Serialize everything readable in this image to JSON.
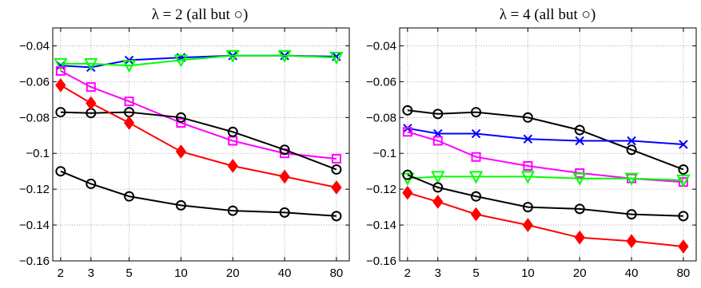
{
  "chart_data": [
    {
      "type": "line",
      "title": "λ = 2  (all but ○)",
      "x_scale": "log",
      "categories": [
        "2",
        "3",
        "5",
        "10",
        "20",
        "40",
        "80"
      ],
      "x": [
        2,
        3,
        5,
        10,
        20,
        40,
        80
      ],
      "xlim": [
        1.8,
        95
      ],
      "ylim": [
        -0.16,
        -0.03
      ],
      "yticks": [
        -0.04,
        -0.06,
        -0.08,
        -0.1,
        -0.12,
        -0.14,
        -0.16
      ],
      "ytick_labels": [
        "−0.04",
        "−0.06",
        "−0.08",
        "−0.1",
        "−0.12",
        "−0.14",
        "−0.16"
      ],
      "grid": true,
      "series": [
        {
          "color": "#0000ff",
          "marker": "x",
          "values": [
            -0.051,
            -0.052,
            -0.048,
            -0.0465,
            -0.0455,
            -0.0455,
            -0.046
          ]
        },
        {
          "color": "#00ff00",
          "marker": "triangle-down",
          "values": [
            -0.05,
            -0.05,
            -0.051,
            -0.048,
            -0.0455,
            -0.0455,
            -0.0465
          ]
        },
        {
          "color": "#ff00ff",
          "marker": "square",
          "values": [
            -0.054,
            -0.063,
            -0.071,
            -0.083,
            -0.093,
            -0.1,
            -0.103
          ]
        },
        {
          "color": "#000000",
          "marker": "circle",
          "values": [
            -0.077,
            -0.0775,
            -0.077,
            -0.08,
            -0.088,
            -0.098,
            -0.109
          ]
        },
        {
          "color": "#ff0000",
          "marker": "diamond",
          "values": [
            -0.062,
            -0.072,
            -0.083,
            -0.099,
            -0.107,
            -0.113,
            -0.119
          ]
        },
        {
          "color": "#000000",
          "marker": "circle",
          "values": [
            -0.11,
            -0.117,
            -0.124,
            -0.129,
            -0.132,
            -0.133,
            -0.135
          ]
        }
      ]
    },
    {
      "type": "line",
      "title": "λ = 4  (all but ○)",
      "x_scale": "log",
      "categories": [
        "2",
        "3",
        "5",
        "10",
        "20",
        "40",
        "80"
      ],
      "x": [
        2,
        3,
        5,
        10,
        20,
        40,
        80
      ],
      "xlim": [
        1.8,
        95
      ],
      "ylim": [
        -0.16,
        -0.03
      ],
      "yticks": [
        -0.04,
        -0.06,
        -0.08,
        -0.1,
        -0.12,
        -0.14,
        -0.16
      ],
      "ytick_labels": [
        "−0.04",
        "−0.06",
        "−0.08",
        "−0.1",
        "−0.12",
        "−0.14",
        "−0.16"
      ],
      "grid": true,
      "series": [
        {
          "color": "#000000",
          "marker": "circle",
          "values": [
            -0.076,
            -0.078,
            -0.077,
            -0.08,
            -0.087,
            -0.098,
            -0.109
          ]
        },
        {
          "color": "#0000ff",
          "marker": "x",
          "values": [
            -0.086,
            -0.089,
            -0.089,
            -0.092,
            -0.093,
            -0.093,
            -0.095
          ]
        },
        {
          "color": "#ff00ff",
          "marker": "square",
          "values": [
            -0.088,
            -0.093,
            -0.102,
            -0.107,
            -0.111,
            -0.114,
            -0.116
          ]
        },
        {
          "color": "#00ff00",
          "marker": "triangle-down",
          "values": [
            -0.114,
            -0.113,
            -0.113,
            -0.113,
            -0.114,
            -0.114,
            -0.115
          ]
        },
        {
          "color": "#000000",
          "marker": "circle",
          "values": [
            -0.112,
            -0.119,
            -0.124,
            -0.13,
            -0.131,
            -0.134,
            -0.135
          ]
        },
        {
          "color": "#ff0000",
          "marker": "diamond",
          "values": [
            -0.122,
            -0.127,
            -0.134,
            -0.14,
            -0.147,
            -0.149,
            -0.152
          ]
        }
      ]
    }
  ]
}
